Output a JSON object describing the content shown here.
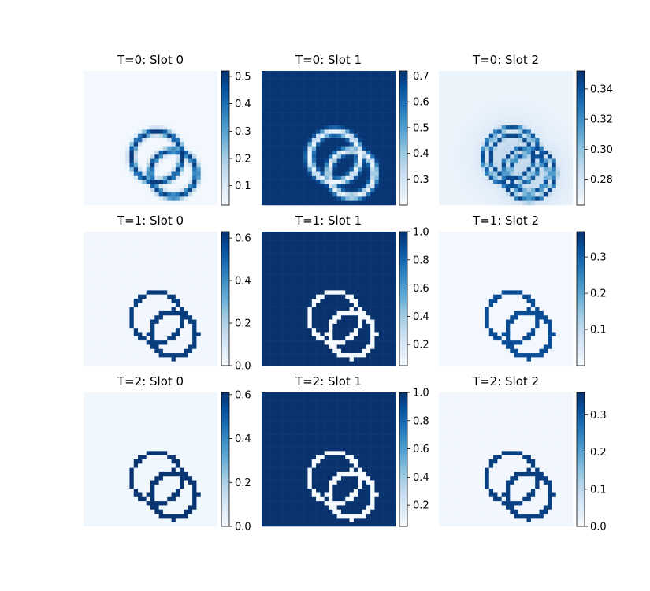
{
  "figure": {
    "colormap": "Blues",
    "colormap_stops": [
      "#f7fbff",
      "#deebf7",
      "#c6dbef",
      "#9ecae1",
      "#6baed6",
      "#4292c6",
      "#2171b5",
      "#08519c",
      "#08306b"
    ]
  },
  "chart_data": [
    {
      "type": "heatmap",
      "title": "T=0: Slot 0",
      "variant": "mask_soft",
      "vmin": 0.03,
      "vmax": 0.52,
      "background_value": 0.04,
      "ring_value": 0.5,
      "colorbar_ticks": [
        0.1,
        0.2,
        0.3,
        0.4,
        0.5
      ],
      "colorbar_tick_labels": [
        "0.1",
        "0.2",
        "0.3",
        "0.4",
        "0.5"
      ]
    },
    {
      "type": "heatmap",
      "title": "T=0: Slot 1",
      "variant": "bg_soft",
      "vmin": 0.2,
      "vmax": 0.72,
      "background_value": 0.71,
      "ring_value": 0.22,
      "colorbar_ticks": [
        0.3,
        0.4,
        0.5,
        0.6,
        0.7
      ],
      "colorbar_tick_labels": [
        "0.3",
        "0.4",
        "0.5",
        "0.6",
        "0.7"
      ]
    },
    {
      "type": "heatmap",
      "title": "T=0: Slot 2",
      "variant": "double_ring",
      "vmin": 0.263,
      "vmax": 0.352,
      "background_value": 0.268,
      "ring_value": 0.345,
      "colorbar_ticks": [
        0.28,
        0.3,
        0.32,
        0.34
      ],
      "colorbar_tick_labels": [
        "0.28",
        "0.30",
        "0.32",
        "0.34"
      ]
    },
    {
      "type": "heatmap",
      "title": "T=1: Slot 0",
      "variant": "mask",
      "vmin": 0.0,
      "vmax": 0.63,
      "background_value": 0.02,
      "ring_value": 0.6,
      "colorbar_ticks": [
        0.0,
        0.2,
        0.4,
        0.6
      ],
      "colorbar_tick_labels": [
        "0.0",
        "0.2",
        "0.4",
        "0.6"
      ]
    },
    {
      "type": "heatmap",
      "title": "T=1: Slot 1",
      "variant": "bg",
      "vmin": 0.05,
      "vmax": 1.0,
      "background_value": 0.99,
      "ring_value": 0.06,
      "colorbar_ticks": [
        0.2,
        0.4,
        0.6,
        0.8,
        1.0
      ],
      "colorbar_tick_labels": [
        "0.2",
        "0.4",
        "0.6",
        "0.8",
        "1.0"
      ]
    },
    {
      "type": "heatmap",
      "title": "T=1: Slot 2",
      "variant": "mask",
      "vmin": 0.0,
      "vmax": 0.37,
      "background_value": 0.01,
      "ring_value": 0.33,
      "colorbar_ticks": [
        0.1,
        0.2,
        0.3
      ],
      "colorbar_tick_labels": [
        "0.1",
        "0.2",
        "0.3"
      ]
    },
    {
      "type": "heatmap",
      "title": "T=2: Slot 0",
      "variant": "mask",
      "vmin": 0.0,
      "vmax": 0.61,
      "background_value": 0.02,
      "ring_value": 0.6,
      "colorbar_ticks": [
        0.0,
        0.2,
        0.4,
        0.6
      ],
      "colorbar_tick_labels": [
        "0.0",
        "0.2",
        "0.4",
        "0.6"
      ]
    },
    {
      "type": "heatmap",
      "title": "T=2: Slot 1",
      "variant": "bg",
      "vmin": 0.05,
      "vmax": 1.0,
      "background_value": 0.99,
      "ring_value": 0.06,
      "colorbar_ticks": [
        0.2,
        0.4,
        0.6,
        0.8,
        1.0
      ],
      "colorbar_tick_labels": [
        "0.2",
        "0.4",
        "0.6",
        "0.8",
        "1.0"
      ]
    },
    {
      "type": "heatmap",
      "title": "T=2: Slot 2",
      "variant": "mask",
      "vmin": 0.0,
      "vmax": 0.36,
      "background_value": 0.01,
      "ring_value": 0.34,
      "colorbar_ticks": [
        0.0,
        0.1,
        0.2,
        0.3
      ],
      "colorbar_tick_labels": [
        "0.0",
        "0.1",
        "0.2",
        "0.3"
      ]
    }
  ]
}
